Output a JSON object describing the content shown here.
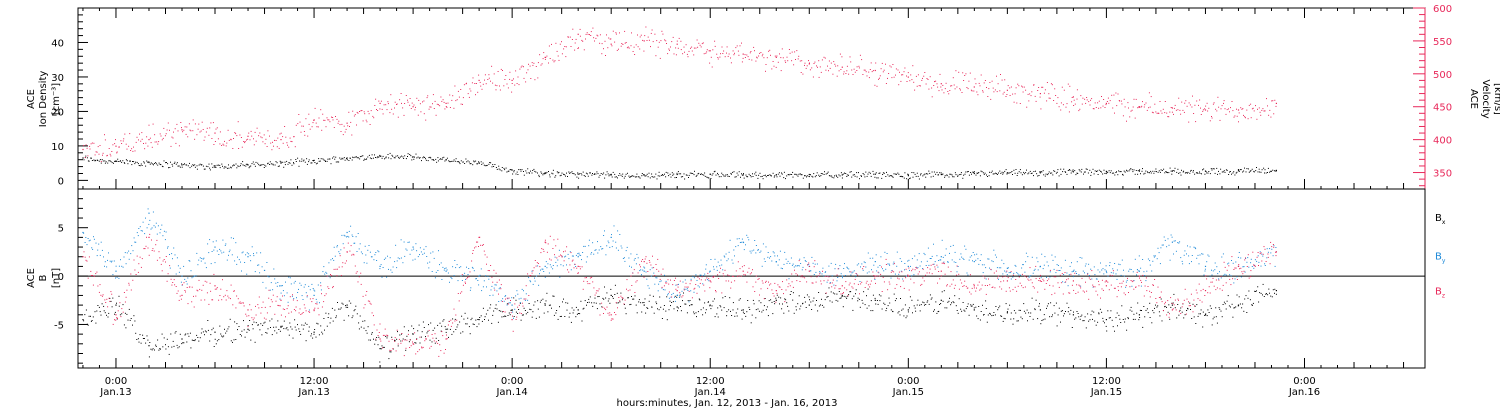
{
  "chart_data": [
    {
      "type": "scatter",
      "x_axis": {
        "ticks": [
          {
            "t": 0,
            "time": "0:00",
            "date": "Jan.13"
          },
          {
            "t": 12,
            "time": "12:00",
            "date": "Jan.13"
          },
          {
            "t": 24,
            "time": "0:00",
            "date": "Jan.14"
          },
          {
            "t": 36,
            "time": "12:00",
            "date": "Jan.14"
          },
          {
            "t": 48,
            "time": "0:00",
            "date": "Jan.15"
          },
          {
            "t": 60,
            "time": "12:00",
            "date": "Jan.15"
          },
          {
            "t": 72,
            "time": "0:00",
            "date": "Jan.16"
          }
        ],
        "xlim": [
          -2.3,
          79.3
        ],
        "xlabel": "hours:minutes, Jan. 12, 2013 - Jan. 16, 2013"
      },
      "left_axis": {
        "label_lines": [
          "ACE",
          "Ion Density",
          "[cm⁻³]"
        ],
        "ylim": [
          -2.5,
          50
        ],
        "ticks": [
          0,
          10,
          20,
          30,
          40
        ],
        "color": "#000000"
      },
      "right_axis": {
        "label_lines": [
          "ACE",
          "Velocity",
          "[km/s]"
        ],
        "ylim": [
          325,
          600
        ],
        "ticks": [
          350,
          400,
          450,
          500,
          550,
          600
        ],
        "color": "#e8285a"
      },
      "series": [
        {
          "color": "#000000",
          "axis": "left",
          "x": [
            -2,
            0,
            2,
            4,
            6,
            8,
            10,
            12,
            14,
            16,
            18,
            20,
            22,
            24,
            26,
            28,
            30,
            32,
            34,
            36,
            38,
            40,
            42,
            44,
            46,
            48,
            50,
            52,
            54,
            56,
            58,
            60,
            62,
            64,
            66,
            68,
            70.3
          ],
          "y": [
            6.5,
            5.5,
            5.2,
            4.5,
            4.2,
            4.5,
            5.0,
            5.8,
            6.5,
            7.0,
            6.8,
            6.0,
            5.0,
            3.0,
            2.2,
            1.8,
            1.6,
            1.6,
            1.7,
            1.8,
            1.6,
            1.6,
            1.7,
            1.6,
            1.8,
            1.6,
            1.7,
            2.0,
            2.2,
            2.2,
            2.5,
            2.6,
            2.7,
            2.7,
            2.7,
            2.8,
            2.9
          ]
        },
        {
          "color": "#e8285a",
          "axis": "right",
          "x": [
            -2,
            0,
            2,
            4,
            6,
            8,
            10,
            12,
            14,
            16,
            18,
            20,
            22,
            24,
            26,
            28,
            30,
            32,
            34,
            36,
            38,
            40,
            42,
            44,
            46,
            48,
            50,
            52,
            54,
            56,
            58,
            60,
            62,
            64,
            66,
            68,
            70.3
          ],
          "y": [
            385,
            390,
            400,
            415,
            410,
            405,
            400,
            430,
            425,
            455,
            450,
            455,
            490,
            490,
            525,
            560,
            545,
            550,
            545,
            535,
            530,
            525,
            515,
            510,
            505,
            495,
            485,
            480,
            475,
            470,
            465,
            455,
            450,
            448,
            445,
            445,
            455
          ]
        }
      ]
    },
    {
      "type": "scatter",
      "x_axis": {
        "xlim": [
          -2.3,
          79.3
        ]
      },
      "left_axis": {
        "label_lines": [
          "ACE",
          "B",
          "[nT]"
        ],
        "ylim": [
          -9.5,
          9
        ],
        "ticks": [
          -5,
          0,
          5
        ],
        "color": "#000000"
      },
      "zero_line": 0,
      "legend": {
        "placement": "right",
        "entries": [
          {
            "label": "B",
            "sub": "x",
            "color": "#000000"
          },
          {
            "label": "B",
            "sub": "y",
            "color": "#1f8ad8"
          },
          {
            "label": "B",
            "sub": "z",
            "color": "#e8285a"
          }
        ]
      },
      "series": [
        {
          "color": "#000000",
          "x": [
            -2,
            0,
            2,
            4,
            6,
            8,
            10,
            12,
            14,
            16,
            18,
            20,
            22,
            24,
            26,
            28,
            30,
            32,
            34,
            36,
            38,
            40,
            42,
            44,
            46,
            48,
            50,
            52,
            54,
            56,
            58,
            60,
            62,
            64,
            66,
            68,
            70.3
          ],
          "y": [
            -4.5,
            -3.0,
            -7.2,
            -6.5,
            -5.8,
            -5.5,
            -5.2,
            -5.8,
            -3.0,
            -7.5,
            -6.0,
            -5.5,
            -4.5,
            -3.5,
            -3.0,
            -3.5,
            -2.0,
            -3.0,
            -3.2,
            -3.0,
            -3.5,
            -2.5,
            -3.0,
            -2.0,
            -2.5,
            -3.5,
            -2.5,
            -3.5,
            -3.8,
            -3.5,
            -4.0,
            -4.5,
            -4.0,
            -3.0,
            -4.0,
            -3.0,
            -1.5
          ]
        },
        {
          "color": "#1f8ad8",
          "x": [
            -2,
            0,
            2,
            4,
            6,
            8,
            10,
            12,
            14,
            16,
            18,
            20,
            22,
            24,
            26,
            28,
            30,
            32,
            34,
            36,
            38,
            40,
            42,
            44,
            46,
            48,
            50,
            52,
            54,
            56,
            58,
            60,
            62,
            64,
            66,
            68,
            70.3
          ],
          "y": [
            4.5,
            0.5,
            6.5,
            0.0,
            3.0,
            2.0,
            -1.0,
            -2.0,
            4.5,
            1.0,
            3.0,
            0.5,
            0.0,
            -3.0,
            1.0,
            2.0,
            4.0,
            0.5,
            -2.0,
            0.5,
            3.5,
            1.5,
            1.0,
            0.0,
            1.5,
            1.0,
            2.0,
            1.5,
            0.8,
            1.0,
            0.5,
            0.5,
            0.5,
            3.5,
            1.0,
            1.0,
            2.5
          ]
        },
        {
          "color": "#e8285a",
          "x": [
            -2,
            0,
            2,
            4,
            6,
            8,
            10,
            12,
            14,
            16,
            18,
            20,
            22,
            24,
            26,
            28,
            30,
            32,
            34,
            36,
            38,
            40,
            42,
            44,
            46,
            48,
            50,
            52,
            54,
            56,
            58,
            60,
            62,
            64,
            66,
            68,
            70.3
          ],
          "y": [
            2.0,
            -4.0,
            4.0,
            -2.0,
            -1.0,
            -3.5,
            -2.5,
            -3.5,
            2.5,
            -6.5,
            -7.0,
            -6.5,
            4.0,
            -4.5,
            3.5,
            1.0,
            -4.0,
            1.5,
            -1.5,
            -0.5,
            0.5,
            -1.5,
            0.5,
            -1.0,
            0.0,
            0.0,
            0.5,
            -1.0,
            -0.5,
            -0.5,
            -0.5,
            -1.0,
            0.0,
            -3.5,
            -1.5,
            1.0,
            2.5
          ]
        }
      ]
    }
  ]
}
